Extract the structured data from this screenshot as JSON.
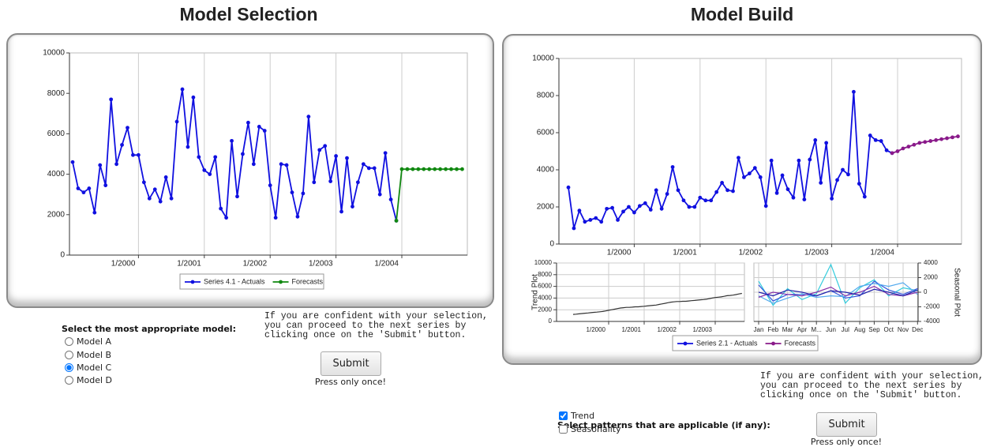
{
  "left": {
    "title": "Model Selection",
    "chart": {
      "type": "line",
      "grid": "x",
      "marker": true,
      "categories": [
        null,
        null,
        null,
        null,
        null,
        null,
        null,
        null,
        null,
        null,
        null,
        null,
        "1/2000",
        null,
        null,
        null,
        null,
        null,
        null,
        null,
        null,
        null,
        null,
        null,
        "1/2001",
        null,
        null,
        null,
        null,
        null,
        null,
        null,
        null,
        null,
        null,
        null,
        "1/2002",
        null,
        null,
        null,
        null,
        null,
        null,
        null,
        null,
        null,
        null,
        null,
        "1/2003",
        null,
        null,
        null,
        null,
        null,
        null,
        null,
        null,
        null,
        null,
        null,
        "1/2004",
        null,
        null,
        null,
        null,
        null,
        null,
        null,
        null,
        null,
        null,
        null
      ],
      "series": [
        {
          "name": "Series 4.1 - Actuals",
          "color": "#1010e0",
          "values": [
            4600,
            3300,
            3100,
            3300,
            2100,
            4450,
            3450,
            7700,
            4500,
            5450,
            6300,
            4950,
            4950,
            3600,
            2800,
            3250,
            2650,
            3850,
            2800,
            6600,
            8200,
            5350,
            7800,
            4850,
            4200,
            4000,
            4850,
            2300,
            1850,
            5650,
            2900,
            5000,
            6550,
            4500,
            6350,
            6150,
            3450,
            1850,
            4500,
            4450,
            3100,
            1900,
            3050,
            6850,
            3600,
            5200,
            5400,
            3650,
            4900,
            2150,
            4800,
            2400,
            3600,
            4500,
            4300,
            4300,
            3000,
            5050,
            2750,
            1700,
            null,
            null,
            null,
            null,
            null,
            null,
            null,
            null,
            null,
            null,
            null,
            null
          ]
        },
        {
          "name": "Forecasts",
          "color": "#118811",
          "values": [
            null,
            null,
            null,
            null,
            null,
            null,
            null,
            null,
            null,
            null,
            null,
            null,
            null,
            null,
            null,
            null,
            null,
            null,
            null,
            null,
            null,
            null,
            null,
            null,
            null,
            null,
            null,
            null,
            null,
            null,
            null,
            null,
            null,
            null,
            null,
            null,
            null,
            null,
            null,
            null,
            null,
            null,
            null,
            null,
            null,
            null,
            null,
            null,
            null,
            null,
            null,
            null,
            null,
            null,
            null,
            null,
            null,
            null,
            null,
            1700,
            4250,
            4250,
            4250,
            4250,
            4250,
            4250,
            4250,
            4250,
            4250,
            4250,
            4250,
            4250
          ]
        }
      ],
      "ylim": [
        0,
        10000
      ],
      "yticks": [
        0,
        2000,
        4000,
        6000,
        8000,
        10000
      ]
    },
    "instructions": [
      "If you are confident with your selection,",
      "you can proceed to the next series by",
      "clicking once on the 'Submit' button."
    ],
    "prompt": "Select the most appropriate model:",
    "options": [
      {
        "label": "Model A",
        "selected": false
      },
      {
        "label": "Model B",
        "selected": false
      },
      {
        "label": "Model C",
        "selected": true
      },
      {
        "label": "Model D",
        "selected": false
      }
    ],
    "button": "Submit",
    "note": "Press only once!"
  },
  "right": {
    "title": "Model Build",
    "chart": {
      "type": "line",
      "grid": "x",
      "marker": true,
      "categories": [
        null,
        null,
        null,
        null,
        null,
        null,
        null,
        null,
        null,
        null,
        null,
        null,
        "1/2000",
        null,
        null,
        null,
        null,
        null,
        null,
        null,
        null,
        null,
        null,
        null,
        "1/2001",
        null,
        null,
        null,
        null,
        null,
        null,
        null,
        null,
        null,
        null,
        null,
        "1/2002",
        null,
        null,
        null,
        null,
        null,
        null,
        null,
        null,
        null,
        null,
        null,
        "1/2003",
        null,
        null,
        null,
        null,
        null,
        null,
        null,
        null,
        null,
        null,
        null,
        "1/2004",
        null,
        null,
        null,
        null,
        null,
        null,
        null,
        null,
        null,
        null,
        null
      ],
      "series": [
        {
          "name": "Series 2.1 - Actuals",
          "color": "#1010e0",
          "values": [
            3050,
            850,
            1800,
            1200,
            1300,
            1400,
            1200,
            1900,
            1950,
            1300,
            1750,
            2000,
            1700,
            2050,
            2200,
            1850,
            2900,
            1900,
            2700,
            4150,
            2900,
            2350,
            2000,
            2000,
            2500,
            2350,
            2350,
            2800,
            3300,
            2900,
            2850,
            4650,
            3600,
            3800,
            4100,
            3600,
            2050,
            4500,
            2750,
            3700,
            2950,
            2500,
            4500,
            2400,
            4550,
            5600,
            3300,
            5450,
            2450,
            3450,
            4000,
            3750,
            8200,
            3250,
            2550,
            5850,
            5600,
            5550,
            5050,
            4900,
            null,
            null,
            null,
            null,
            null,
            null,
            null,
            null,
            null,
            null,
            null,
            null
          ]
        },
        {
          "name": "Forecasts",
          "color": "#8a1a8a",
          "values": [
            null,
            null,
            null,
            null,
            null,
            null,
            null,
            null,
            null,
            null,
            null,
            null,
            null,
            null,
            null,
            null,
            null,
            null,
            null,
            null,
            null,
            null,
            null,
            null,
            null,
            null,
            null,
            null,
            null,
            null,
            null,
            null,
            null,
            null,
            null,
            null,
            null,
            null,
            null,
            null,
            null,
            null,
            null,
            null,
            null,
            null,
            null,
            null,
            null,
            null,
            null,
            null,
            null,
            null,
            null,
            null,
            null,
            null,
            null,
            4900,
            5000,
            5150,
            5250,
            5350,
            5450,
            5500,
            5550,
            5600,
            5650,
            5700,
            5750,
            5800
          ]
        }
      ],
      "ylim": [
        0,
        10000
      ],
      "yticks": [
        0,
        2000,
        4000,
        6000,
        8000,
        10000
      ]
    },
    "trend_chart": {
      "type": "line",
      "grid": "xy",
      "marker": false,
      "ylabel": "Trend Plot",
      "categories": [
        null,
        null,
        null,
        null,
        null,
        null,
        null,
        null,
        null,
        null,
        null,
        null,
        "1/2000",
        null,
        null,
        null,
        null,
        null,
        null,
        null,
        null,
        null,
        null,
        null,
        "1/2001",
        null,
        null,
        null,
        null,
        null,
        null,
        null,
        null,
        null,
        null,
        null,
        "1/2002",
        null,
        null,
        null,
        null,
        null,
        null,
        null,
        null,
        null,
        null,
        null,
        "1/2003",
        null,
        null,
        null,
        null,
        null,
        null,
        null,
        null,
        null,
        null,
        null
      ],
      "series": [
        {
          "color": "#333333",
          "values": [
            1200,
            1250,
            1300,
            1350,
            1400,
            1450,
            1500,
            1550,
            1600,
            1650,
            1700,
            1800,
            1900,
            2000,
            2100,
            2200,
            2300,
            2350,
            2400,
            2400,
            2450,
            2500,
            2500,
            2550,
            2600,
            2650,
            2700,
            2750,
            2800,
            2900,
            3000,
            3100,
            3200,
            3300,
            3350,
            3400,
            3400,
            3450,
            3450,
            3500,
            3550,
            3600,
            3650,
            3700,
            3750,
            3800,
            3900,
            4000,
            4100,
            4150,
            4200,
            4300,
            4400,
            4450,
            4500,
            4600,
            4700,
            4800,
            null,
            null
          ]
        }
      ],
      "ylim": [
        0,
        10000
      ],
      "yticks": [
        0,
        2000,
        4000,
        6000,
        8000,
        10000
      ]
    },
    "seasonal_chart": {
      "type": "line",
      "grid": "xy",
      "marker": false,
      "ylabel": "Seasonal Plot",
      "yaxis": "right",
      "categories": [
        "Jan",
        "Feb",
        "Mar",
        "Apr",
        "M...",
        "Jun",
        "Jul",
        "Aug",
        "Sep",
        "Oct",
        "Nov",
        "Dec"
      ],
      "series": [
        {
          "color": "#33ccdd",
          "values": [
            1500,
            -1800,
            500,
            -1000,
            -200,
            3800,
            -1500,
            600,
            1700,
            -500,
            600,
            200
          ]
        },
        {
          "color": "#3355dd",
          "values": [
            1000,
            -1200,
            -300,
            -300,
            -500,
            200,
            -800,
            -500,
            1500,
            300,
            -300,
            500
          ]
        },
        {
          "color": "#55aaee",
          "values": [
            -500,
            -1500,
            -800,
            -200,
            -700,
            -500,
            -600,
            800,
            1200,
            800,
            1300,
            -300
          ]
        },
        {
          "color": "#8833aa",
          "values": [
            -700,
            0,
            -300,
            -500,
            0,
            700,
            -500,
            0,
            800,
            -300,
            -500,
            0
          ]
        },
        {
          "color": "#2222aa",
          "values": [
            0,
            -500,
            300,
            0,
            -500,
            200,
            0,
            -400,
            400,
            0,
            -500,
            300
          ]
        }
      ],
      "ylim": [
        -4000,
        4000
      ],
      "yticks": [
        -4000,
        -2000,
        0,
        2000,
        4000
      ]
    },
    "instructions": [
      "If you are confident with your selection,",
      "you can proceed to the next series by",
      "clicking once on the 'Submit' button."
    ],
    "prompt": "Select patterns that are applicable (if any):",
    "options": [
      {
        "label": "Trend",
        "checked": true
      },
      {
        "label": "Seasonality",
        "checked": false
      }
    ],
    "button": "Submit",
    "note": "Press only once!"
  }
}
